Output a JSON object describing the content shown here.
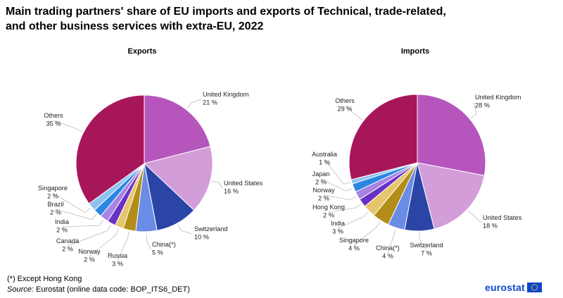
{
  "title": "Main trading partners' share of EU imports and exports of Technical, trade-related, and other business services with extra-EU, 2022",
  "footnote": "(*) Except Hong Kong",
  "source_label": "Source:",
  "source_text": "Eurostat (online data code: BOP_ITS6_DET)",
  "logo_text": "eurostat",
  "chart_data": [
    {
      "type": "pie",
      "title": "Exports",
      "unit": "%",
      "slices": [
        {
          "label": "United Kingdom",
          "value": 21,
          "color": "#b656bd"
        },
        {
          "label": "United States",
          "value": 16,
          "color": "#d39dd9"
        },
        {
          "label": "Switzerland",
          "value": 10,
          "color": "#2a45a6"
        },
        {
          "label": "China(*)",
          "value": 5,
          "color": "#6b8ce6"
        },
        {
          "label": "Russia",
          "value": 3,
          "color": "#b28d18"
        },
        {
          "label": "Norway",
          "value": 2,
          "color": "#e6c66c"
        },
        {
          "label": "Canada",
          "value": 2,
          "color": "#6a32c4"
        },
        {
          "label": "India",
          "value": 2,
          "color": "#a883e3"
        },
        {
          "label": "Brazil",
          "value": 2,
          "color": "#2a86e3"
        },
        {
          "label": "Singapore",
          "value": 2,
          "color": "#8cc3ef"
        },
        {
          "label": "Others",
          "value": 35,
          "color": "#a8165a"
        }
      ]
    },
    {
      "type": "pie",
      "title": "Imports",
      "unit": "%",
      "slices": [
        {
          "label": "United Kingdom",
          "value": 28,
          "color": "#b656bd"
        },
        {
          "label": "United States",
          "value": 18,
          "color": "#d39dd9"
        },
        {
          "label": "Switzerland",
          "value": 7,
          "color": "#2a45a6"
        },
        {
          "label": "China(*)",
          "value": 4,
          "color": "#6b8ce6"
        },
        {
          "label": "Singapore",
          "value": 4,
          "color": "#b28d18"
        },
        {
          "label": "India",
          "value": 3,
          "color": "#e6c66c"
        },
        {
          "label": "Hong Kong",
          "value": 2,
          "color": "#6a32c4"
        },
        {
          "label": "Norway",
          "value": 2,
          "color": "#a883e3"
        },
        {
          "label": "Japan",
          "value": 2,
          "color": "#2a86e3"
        },
        {
          "label": "Australia",
          "value": 1,
          "color": "#8cc3ef"
        },
        {
          "label": "Others",
          "value": 29,
          "color": "#a8165a"
        }
      ]
    }
  ]
}
